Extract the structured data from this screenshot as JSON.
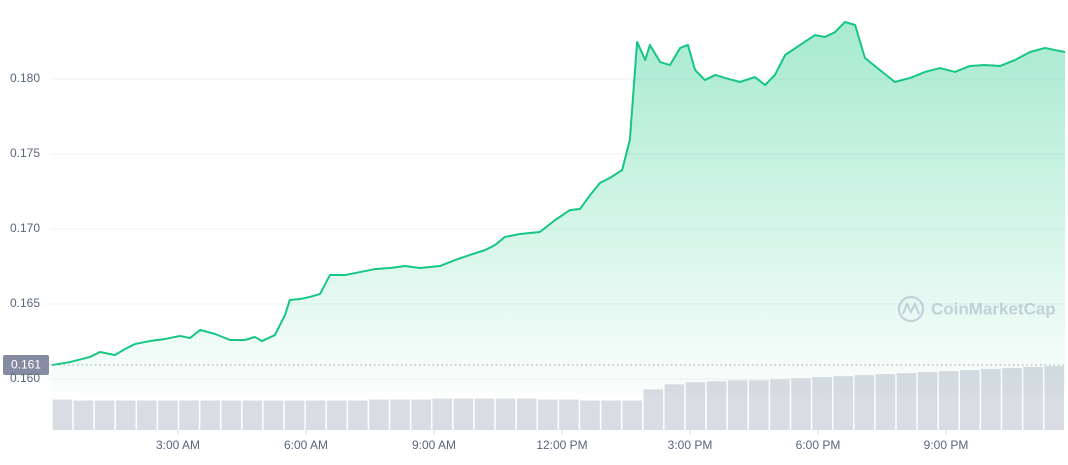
{
  "chart_data": {
    "type": "area",
    "x": [
      0.05,
      0.47,
      0.94,
      1.17,
      1.52,
      1.76,
      1.99,
      2.34,
      2.7,
      3.05,
      3.28,
      3.52,
      3.87,
      4.22,
      4.57,
      4.8,
      4.97,
      5.27,
      5.51,
      5.62,
      5.86,
      6.09,
      6.33,
      6.56,
      6.91,
      7.27,
      7.62,
      7.97,
      8.32,
      8.67,
      9.14,
      9.49,
      9.84,
      10.2,
      10.43,
      10.66,
      11.02,
      11.48,
      11.84,
      12.19,
      12.42,
      12.66,
      12.89,
      13.12,
      13.41,
      13.59,
      13.76,
      13.95,
      14.06,
      14.3,
      14.53,
      14.77,
      14.95,
      15.12,
      15.35,
      15.59,
      15.82,
      16.17,
      16.52,
      16.76,
      16.99,
      17.23,
      17.58,
      17.93,
      18.16,
      18.4,
      18.63,
      18.87,
      19.1,
      19.45,
      19.8,
      20.16,
      20.51,
      20.86,
      21.21,
      21.56,
      21.91,
      22.27,
      22.62,
      22.97,
      23.32,
      23.55,
      23.79
    ],
    "series": [
      {
        "color": "#16c784",
        "values": [
          0.16093,
          0.16113,
          0.16147,
          0.1618,
          0.1616,
          0.162,
          0.16233,
          0.16253,
          0.16267,
          0.16287,
          0.16273,
          0.16327,
          0.163,
          0.1626,
          0.1626,
          0.1628,
          0.16253,
          0.16293,
          0.16427,
          0.16527,
          0.16533,
          0.16547,
          0.16567,
          0.16693,
          0.16693,
          0.16713,
          0.16733,
          0.1674,
          0.16753,
          0.1674,
          0.16753,
          0.16793,
          0.16827,
          0.1686,
          0.16893,
          0.16947,
          0.16967,
          0.1698,
          0.1706,
          0.17127,
          0.17133,
          0.17227,
          0.17307,
          0.1734,
          0.17393,
          0.17593,
          0.18247,
          0.18127,
          0.18227,
          0.18113,
          0.18093,
          0.18207,
          0.18227,
          0.1806,
          0.17993,
          0.18027,
          0.18007,
          0.1798,
          0.18013,
          0.1796,
          0.18027,
          0.1816,
          0.18227,
          0.18293,
          0.1828,
          0.18313,
          0.1838,
          0.1836,
          0.1814,
          0.1806,
          0.1798,
          0.18007,
          0.18047,
          0.18073,
          0.18047,
          0.18087,
          0.18093,
          0.18087,
          0.18127,
          0.1818,
          0.18207,
          0.18193,
          0.1818
        ]
      }
    ],
    "volume": {
      "color": "#d9dce3",
      "values": [
        30,
        29,
        29,
        29,
        29,
        29,
        29,
        29,
        29,
        29,
        29,
        29,
        29,
        29,
        29,
        30,
        30,
        30,
        31,
        31,
        31,
        31,
        31,
        30,
        30,
        29,
        29,
        29,
        40,
        45,
        47,
        48,
        49,
        49,
        50,
        51,
        52,
        53,
        54,
        55,
        56,
        57,
        58,
        59,
        60,
        61,
        62,
        63
      ]
    },
    "xlim": [
      0,
      24
    ],
    "xticks": [
      {
        "value": 3,
        "label": "3:00 AM"
      },
      {
        "value": 6,
        "label": "6:00 AM"
      },
      {
        "value": 9,
        "label": "9:00 AM"
      },
      {
        "value": 12,
        "label": "12:00 PM"
      },
      {
        "value": 15,
        "label": "3:00 PM"
      },
      {
        "value": 18,
        "label": "6:00 PM"
      },
      {
        "value": 21,
        "label": "9:00 PM"
      }
    ],
    "ylim": [
      0.159,
      0.185
    ],
    "yticks": [
      {
        "value": 0.16,
        "label": "0.160"
      },
      0.165,
      {
        "value": 0.17,
        "label": "0.170"
      },
      0.175,
      {
        "value": 0.18,
        "label": "0.180"
      }
    ],
    "grid": true,
    "open_price": {
      "value": 0.16093,
      "label": "0.161"
    },
    "watermark": "CoinMarketCap"
  }
}
